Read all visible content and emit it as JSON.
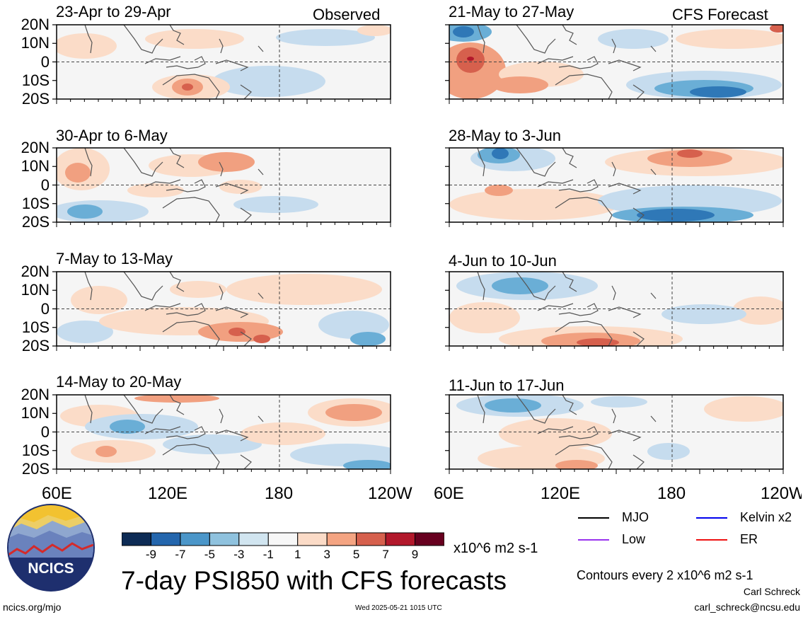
{
  "panels": [
    {
      "id": "p1",
      "title": "23-Apr to 29-Apr",
      "tag": "Observed"
    },
    {
      "id": "p2",
      "title": "30-Apr to 6-May",
      "tag": ""
    },
    {
      "id": "p3",
      "title": "7-May to 13-May",
      "tag": ""
    },
    {
      "id": "p4",
      "title": "14-May to 20-May",
      "tag": ""
    },
    {
      "id": "p5",
      "title": "21-May to 27-May",
      "tag": "CFS Forecast"
    },
    {
      "id": "p6",
      "title": "28-May to 3-Jun",
      "tag": ""
    },
    {
      "id": "p7",
      "title": "4-Jun to 10-Jun",
      "tag": ""
    },
    {
      "id": "p8",
      "title": "11-Jun to 17-Jun",
      "tag": ""
    }
  ],
  "lat_labels": [
    "20N",
    "10N",
    "0",
    "10S",
    "20S"
  ],
  "lon_labels": {
    "left": [
      "60E",
      "120E",
      "180",
      "120W"
    ],
    "right": [
      "60E",
      "120E",
      "180",
      "120W"
    ]
  },
  "colorbar": {
    "colors": [
      "#0d2b55",
      "#2466ad",
      "#4b96c9",
      "#8fc2de",
      "#d1e5f0",
      "#f7f7f7",
      "#fbdbc7",
      "#f4a482",
      "#d6604d",
      "#b2182b",
      "#67001f"
    ],
    "labels": [
      "-9",
      "-7",
      "-5",
      "-3",
      "-1",
      "1",
      "3",
      "5",
      "7",
      "9"
    ],
    "units": "x10^6 m2 s-1"
  },
  "legend": [
    {
      "label": "MJO",
      "color": "#000000"
    },
    {
      "label": "Kelvin x2",
      "color": "#0000ee"
    },
    {
      "label": "Low",
      "color": "#9933ee"
    },
    {
      "label": "ER",
      "color": "#ee1111"
    }
  ],
  "title": "7-day PSI850 with CFS forecasts",
  "contours_note": "Contours every 2 x10^6 m2 s-1",
  "author": "Carl Schreck",
  "email": "carl_schreck@ncsu.edu",
  "website": "ncics.org/mjo",
  "timestamp": "Wed 2025-05-21 1015 UTC",
  "logo_text": "NCICS"
}
